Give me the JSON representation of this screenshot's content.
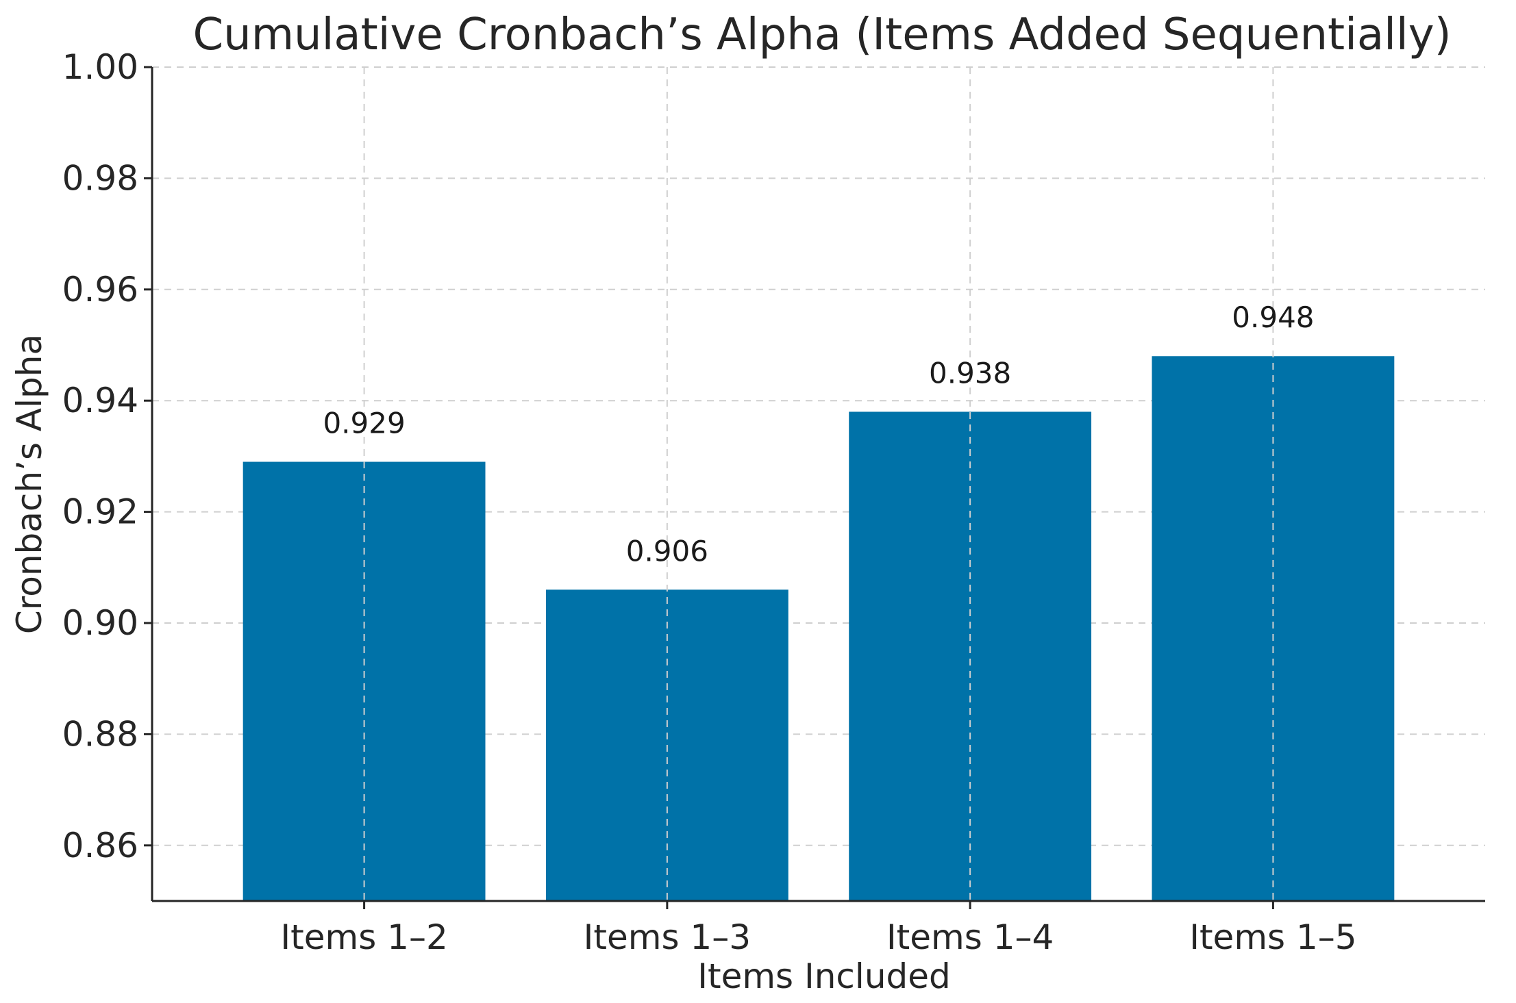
{
  "chart_data": {
    "type": "bar",
    "title": "Cumulative Cronbach’s Alpha (Items Added Sequentially)",
    "xlabel": "Items Included",
    "ylabel": "Cronbach’s Alpha",
    "categories": [
      "Items 1–2",
      "Items 1–3",
      "Items 1–4",
      "Items 1–5"
    ],
    "values": [
      0.929,
      0.906,
      0.938,
      0.948
    ],
    "data_labels": [
      "0.929",
      "0.906",
      "0.938",
      "0.948"
    ],
    "ylim": [
      0.85,
      1.0
    ],
    "yticks": [
      0.86,
      0.88,
      0.9,
      0.92,
      0.94,
      0.96,
      0.98,
      1.0
    ],
    "ytick_labels": [
      "0.86",
      "0.88",
      "0.90",
      "0.92",
      "0.94",
      "0.96",
      "0.98",
      "1.00"
    ],
    "grid": true,
    "bar_color": "#0072a8"
  }
}
